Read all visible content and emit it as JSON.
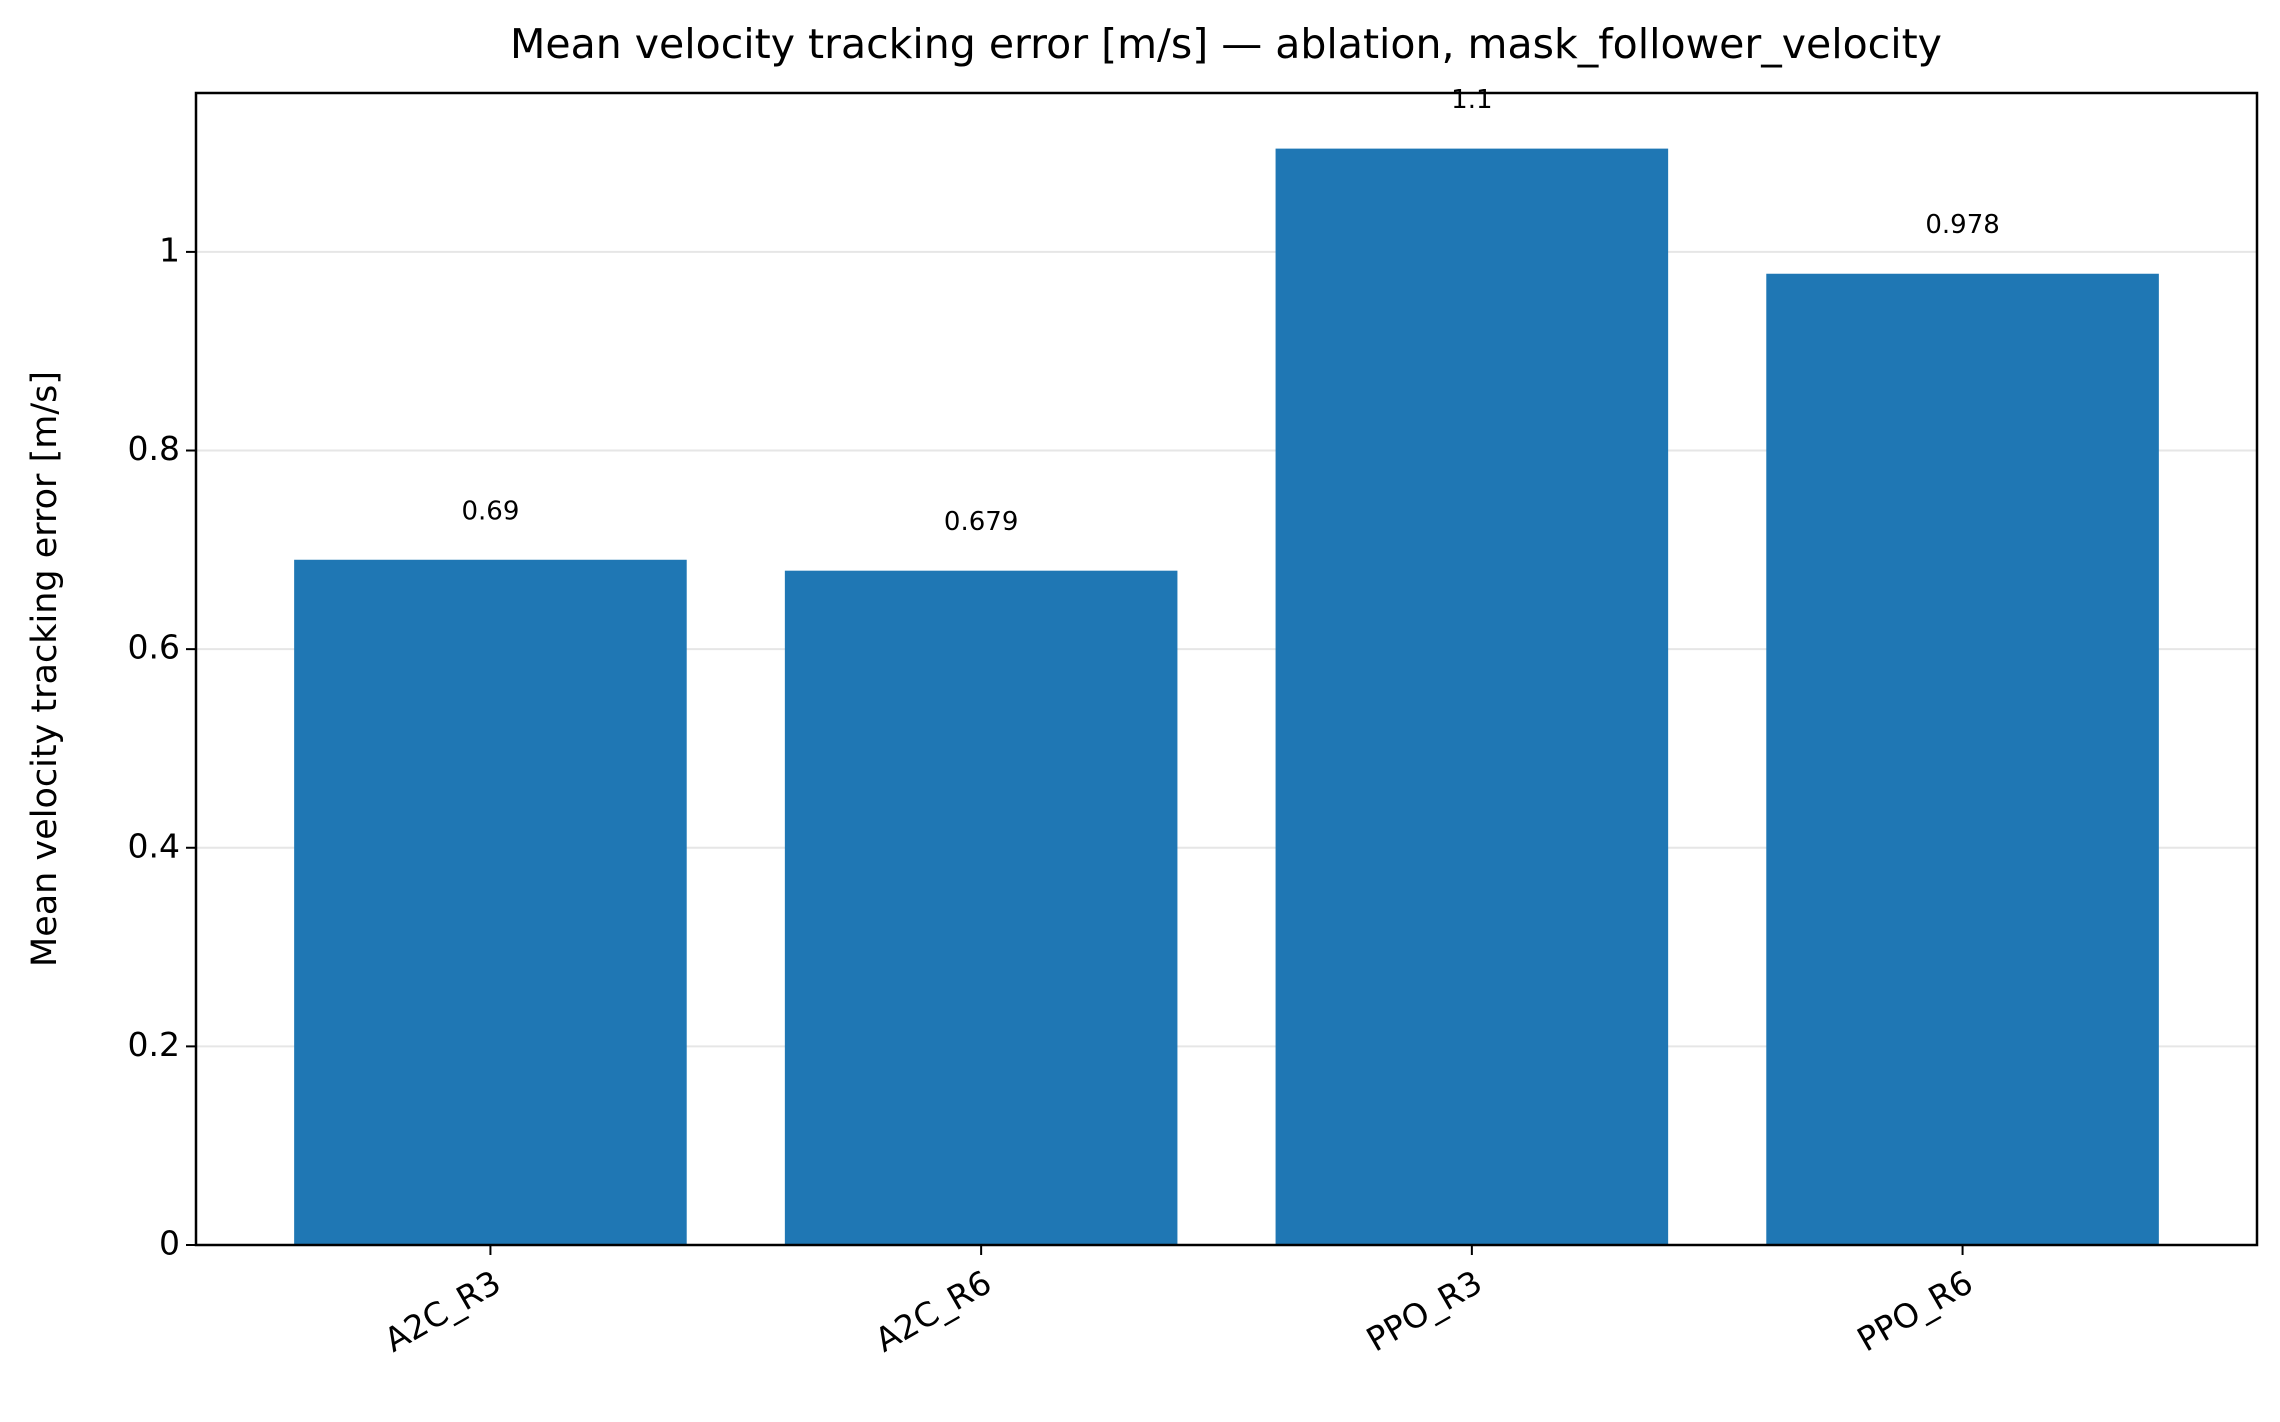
{
  "chart_data": {
    "type": "bar",
    "title": "Mean velocity tracking error [m/s] — ablation, mask_follower_velocity",
    "y_label": "Mean velocity tracking error [m/s]",
    "categories": [
      "A2C_R3",
      "A2C_R6",
      "PPO_R3",
      "PPO_R6"
    ],
    "values": [
      0.69,
      0.679,
      1.104,
      0.978
    ],
    "value_labels": [
      "0.69",
      "0.679",
      "1.1",
      "0.978"
    ],
    "color": "#1f77b4",
    "ylim": [
      0,
      1.16
    ],
    "yticks": [
      0.0,
      0.2,
      0.4,
      0.6,
      0.8,
      1.0
    ],
    "grid": true
  }
}
